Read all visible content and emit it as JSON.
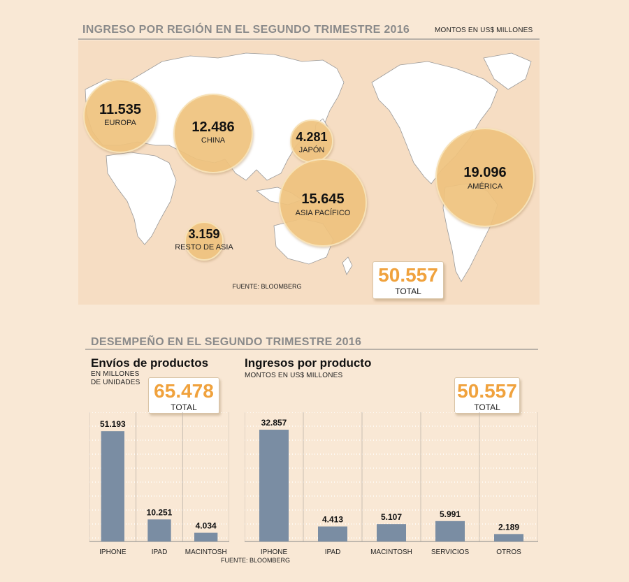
{
  "header": {
    "title": "INGRESO POR REGIÓN EN EL SEGUNDO TRIMESTRE 2016",
    "units": "MONTOS EN US$ MILLONES"
  },
  "map": {
    "source": "FUENTE: BLOOMBERG",
    "total_value": "50.557",
    "total_label": "TOTAL",
    "land_color": "#ffffff",
    "sea_color": "#f6ddc3",
    "bubble_color": "#f1c57f"
  },
  "performance": {
    "title": "DESEMPEÑO EN EL SEGUNDO TRIMESTRE 2016",
    "source": "FUENTE: BLOOMBERG"
  },
  "shipments": {
    "title": "Envíos de productos",
    "units_line1": "EN MILLONES",
    "units_line2": "DE UNIDADES",
    "total_value": "65.478",
    "total_label": "TOTAL"
  },
  "revenue": {
    "title": "Ingresos por producto",
    "units": "MONTOS EN US$ MILLONES",
    "total_value": "50.557",
    "total_label": "TOTAL"
  },
  "colors": {
    "bar": "#7a8da3",
    "accent": "#f0a23d"
  },
  "chart_data": [
    {
      "type": "bubble",
      "title": "INGRESO POR REGIÓN EN EL SEGUNDO TRIMESTRE 2016",
      "unit": "MONTOS EN US$ MILLONES",
      "regions": [
        {
          "name": "EUROPA",
          "value": 11535,
          "label": "11.535"
        },
        {
          "name": "CHINA",
          "value": 12486,
          "label": "12.486"
        },
        {
          "name": "JAPÓN",
          "value": 4281,
          "label": "4.281"
        },
        {
          "name": "ASIA PACÍFICO",
          "value": 15645,
          "label": "15.645"
        },
        {
          "name": "RESTO DE ASIA",
          "value": 3159,
          "label": "3.159"
        },
        {
          "name": "AMÉRICA",
          "value": 19096,
          "label": "19.096"
        }
      ],
      "total": 50557
    },
    {
      "type": "bar",
      "title": "Envíos de productos",
      "ylabel": "EN MILLONES DE UNIDADES",
      "categories": [
        "IPHONE",
        "IPAD",
        "MACINTOSH"
      ],
      "values": [
        51193,
        10251,
        4034
      ],
      "value_labels": [
        "51.193",
        "10.251",
        "4.034"
      ],
      "ylim": [
        0,
        60000
      ],
      "total": 65478
    },
    {
      "type": "bar",
      "title": "Ingresos por producto",
      "ylabel": "MONTOS EN US$ MILLONES",
      "categories": [
        "IPHONE",
        "IPAD",
        "MACINTOSH",
        "SERVICIOS",
        "OTROS"
      ],
      "values": [
        32857,
        4413,
        5107,
        5991,
        2189
      ],
      "value_labels": [
        "32.857",
        "4.413",
        "5.107",
        "5.991",
        "2.189"
      ],
      "ylim": [
        0,
        38000
      ],
      "total": 50557
    }
  ]
}
